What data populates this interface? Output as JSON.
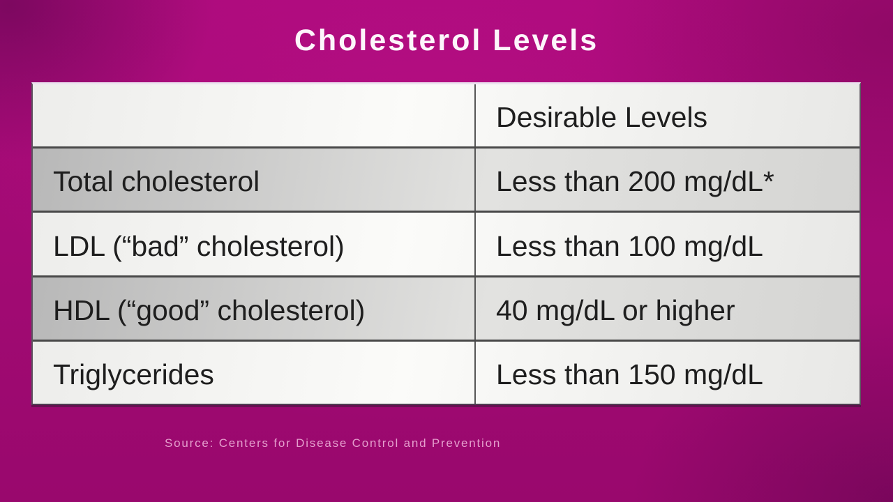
{
  "title": "Cholesterol Levels",
  "table": {
    "header": {
      "blank": "",
      "desirable": "Desirable Levels"
    },
    "rows": [
      {
        "label": "Total cholesterol",
        "value": "Less than 200 mg/dL*"
      },
      {
        "label": "LDL (“bad” cholesterol)",
        "value": "Less than 100 mg/dL"
      },
      {
        "label": "HDL (“good” cholesterol)",
        "value": "40 mg/dL or higher"
      },
      {
        "label": "Triglycerides",
        "value": "Less than 150 mg/dL"
      }
    ]
  },
  "source": "Source: Centers for Disease Control and Prevention",
  "colors": {
    "background_magenta": "#a50a76",
    "background_dark_corner": "#8a0763",
    "title_text": "#fdf6fb",
    "cell_text": "#1e1e1e",
    "row_light": "#f4f4f2",
    "row_gray": "#c9c9c7",
    "grid_line": "#484848",
    "source_text": "#e59fcd"
  }
}
